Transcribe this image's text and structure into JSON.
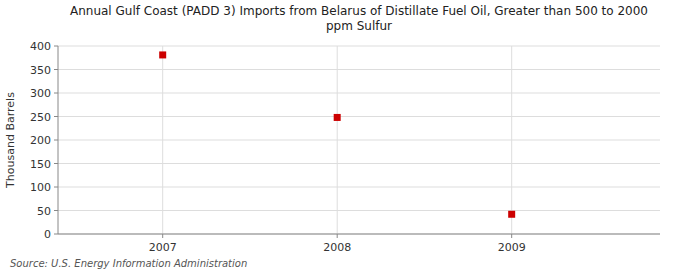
{
  "chart_data": {
    "type": "scatter",
    "title": "Annual Gulf Coast (PADD 3) Imports from Belarus of Distillate Fuel Oil, Greater than 500 to 2000\nppm Sulfur",
    "y_label": "Thousand Barrels",
    "x": [
      2007,
      2008,
      2009
    ],
    "values": [
      381,
      248,
      42
    ],
    "color": "#cc0000",
    "marker": "square",
    "xlim": [
      2006.4,
      2009.85
    ],
    "ylim": [
      0,
      400
    ],
    "xticks": [
      2007,
      2008,
      2009
    ],
    "yticks": [
      0,
      50,
      100,
      150,
      200,
      250,
      300,
      350,
      400
    ],
    "grid": true,
    "annotations": [
      "Source: U.S. Energy Information Administration"
    ]
  }
}
